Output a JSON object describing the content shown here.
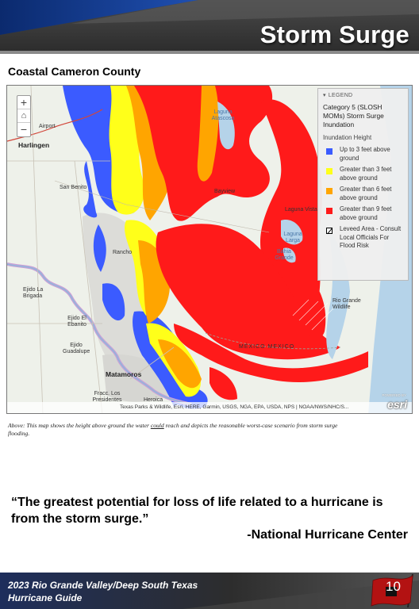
{
  "header": {
    "title": "Storm Surge"
  },
  "subtitle": "Coastal Cameron County",
  "map": {
    "zoom_in": "+",
    "zoom_out": "−",
    "home_icon": "home-icon",
    "labels": {
      "harlingen": "Harlingen",
      "san_benito": "San Benito",
      "laguna_atascosa": "Laguna Atascosa",
      "bayview": "Bayview",
      "laguna_vista": "Laguna Vista",
      "laguna_larga": "Laguna Larga",
      "bahia_grande": "Bahia Grande",
      "rancho": "Rancho",
      "ejido_la_brigada": "Ejido La Brigada",
      "ejido_el_ebanito": "Ejido El Ebanito",
      "ejido_guadalupe": "Ejido Guadalupe",
      "matamoros": "Matamoros",
      "fracc_presidentes": "Fracc. Los Presidentes",
      "heroica": "Heroica",
      "mexico_mexico": "MÉXICO MEXICO",
      "rio_grande_wildlife": "Rio Grande Wildlife",
      "airport": "Airport"
    },
    "attribution": "Texas Parks & Wildlife, Esri, HERE, Garmin, USGS, NGA, EPA, USDA, NPS | NOAA/NWS/NHC/S...",
    "powered_by": "POWERED BY",
    "esri": "esri"
  },
  "legend": {
    "header": "LEGEND",
    "title": "Category 5 (SLOSH MOMs) Storm Surge Inundation",
    "subheading": "Inundation Height",
    "items": [
      {
        "label": "Up to 3 feet above ground",
        "color": "#3b5bff"
      },
      {
        "label": "Greater than 3 feet above ground",
        "color": "#ffff1a"
      },
      {
        "label": "Greater than 6 feet above ground",
        "color": "#ffa500"
      },
      {
        "label": "Greater than 9 feet above ground",
        "color": "#ff1a1a"
      }
    ],
    "levee_label": "Leveed Area - Consult Local Officials For Flood Risk"
  },
  "caption": {
    "before": "Above: This map shows the height above ground the water ",
    "underlined": "could",
    "after": " reach and depicts the reasonable worst-case scenario from storm surge flooding."
  },
  "quote": {
    "text": "“The greatest potential for loss of life related to a hurricane is from the storm surge.”",
    "attribution": "-National Hurricane Center"
  },
  "footer": {
    "line1": "2023 Rio Grande Valley/Deep South Texas",
    "line2": "Hurricane Guide",
    "page_number": "10"
  }
}
